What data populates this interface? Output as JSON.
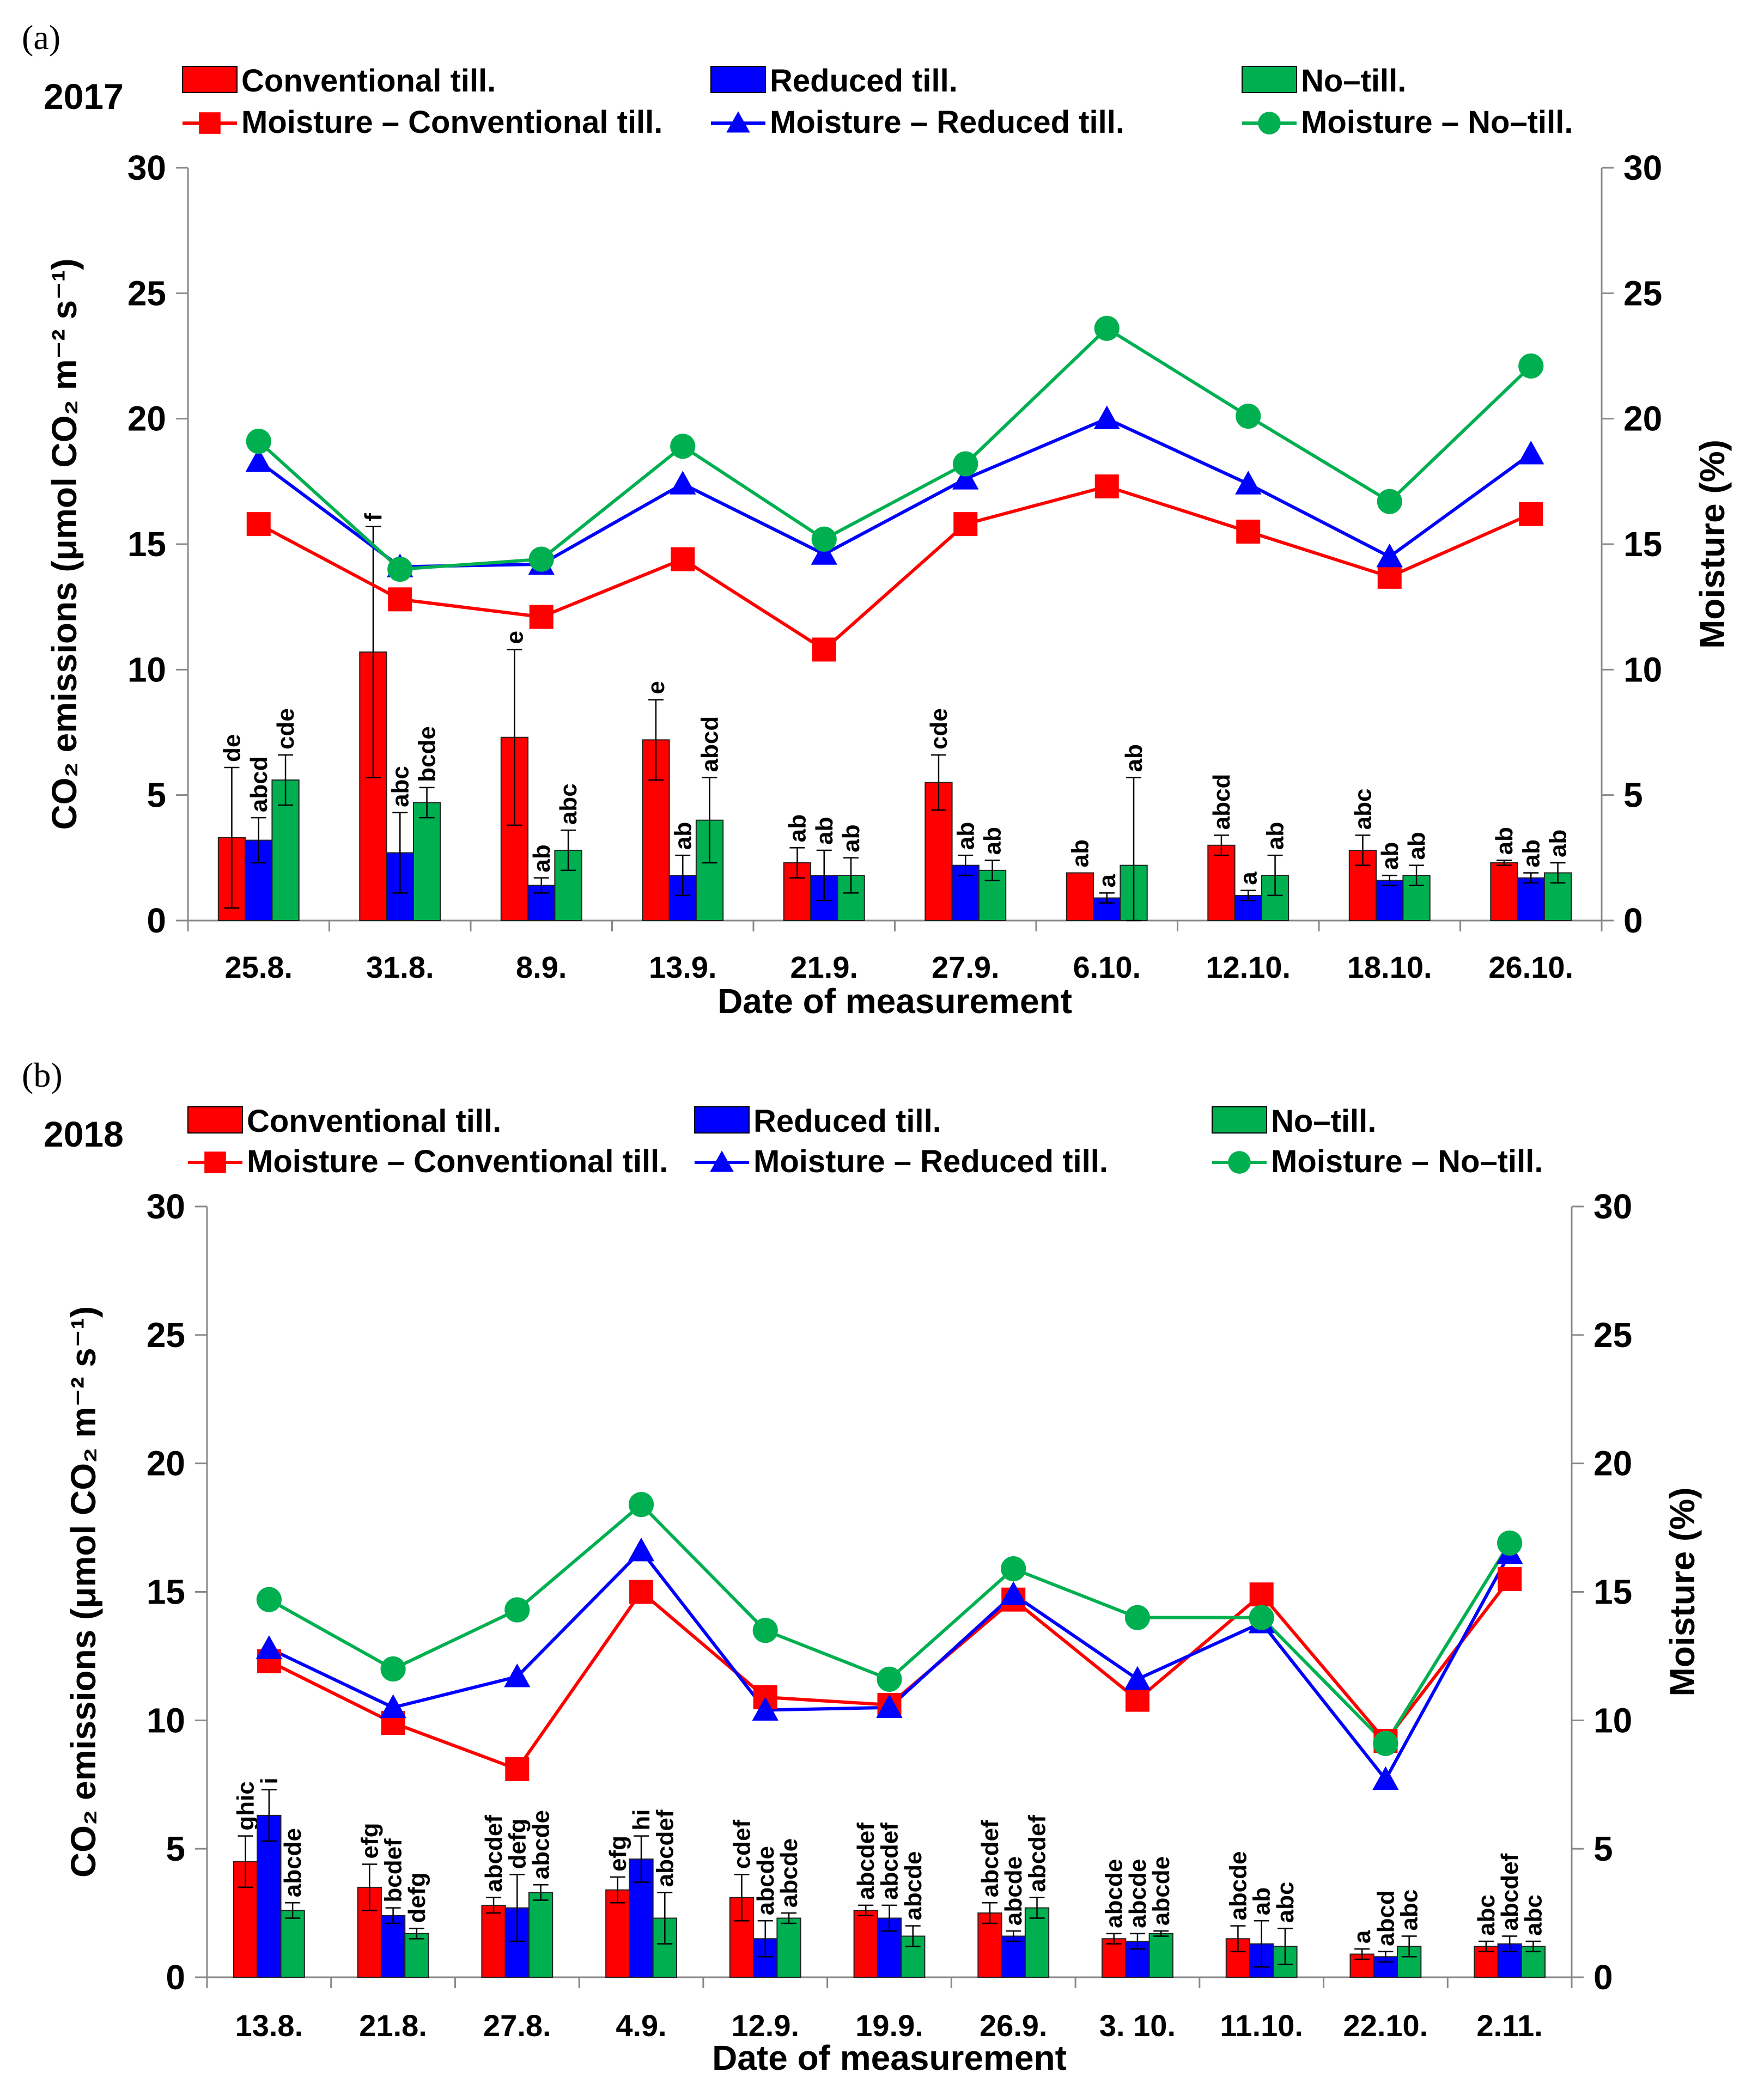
{
  "colors": {
    "conventional": "#ff0000",
    "reduced": "#0000ff",
    "no_till": "#00b050",
    "axis": "#888888",
    "text": "#000000"
  },
  "chart_data": [
    {
      "type": "bar+line",
      "panel_label": "(a)",
      "year": "2017",
      "xlabel": "Date of measurement",
      "ylabel_left": "CO₂ emissions (μmol CO₂ m⁻² s⁻¹)",
      "ylabel_right": "Moisture (%)",
      "ylim_left": [
        0,
        30
      ],
      "ylim_right": [
        0,
        30
      ],
      "yticks": [
        "0",
        "5",
        "10",
        "15",
        "20",
        "25",
        "30"
      ],
      "legend": {
        "bars": [
          "Conventional till.",
          "Reduced till.",
          "No–till."
        ],
        "lines": [
          "Moisture – Conventional till.",
          "Moisture – Reduced till.",
          "Moisture – No–till."
        ]
      },
      "categories": [
        "25.8.",
        "31.8.",
        "8.9.",
        "13.9.",
        "21.9.",
        "27.9.",
        "6.10.",
        "12.10.",
        "18.10.",
        "26.10."
      ],
      "bar_series": [
        {
          "name": "Conventional till.",
          "values": [
            3.3,
            10.7,
            7.3,
            7.2,
            2.3,
            5.5,
            1.9,
            3.0,
            2.8,
            2.3
          ],
          "errors": [
            2.8,
            5.0,
            3.5,
            1.6,
            0.6,
            1.1,
            0.0,
            0.4,
            0.6,
            0.1
          ],
          "letters": [
            "de",
            "f",
            "e",
            "e",
            "ab",
            "cde",
            "ab",
            "abcd",
            "abc",
            "ab"
          ]
        },
        {
          "name": "Reduced till.",
          "values": [
            3.2,
            2.7,
            1.4,
            1.8,
            1.8,
            2.2,
            0.9,
            1.0,
            1.6,
            1.7
          ],
          "errors": [
            0.9,
            1.6,
            0.3,
            0.8,
            1.0,
            0.4,
            0.2,
            0.2,
            0.2,
            0.2
          ],
          "letters": [
            "abcd",
            "abc",
            "ab",
            "ab",
            "ab",
            "ab",
            "a",
            "a",
            "ab",
            "ab"
          ]
        },
        {
          "name": "No–till.",
          "values": [
            5.6,
            4.7,
            2.8,
            4.0,
            1.8,
            2.0,
            2.2,
            1.8,
            1.8,
            1.9
          ],
          "errors": [
            1.0,
            0.6,
            0.8,
            1.7,
            0.7,
            0.4,
            3.5,
            0.8,
            0.4,
            0.4
          ],
          "letters": [
            "cde",
            "bcde",
            "abc",
            "abcd",
            "ab",
            "ab",
            "ab",
            "ab",
            "ab",
            "ab"
          ]
        }
      ],
      "moisture_series": [
        {
          "name": "Moisture – Conventional till.",
          "marker": "square",
          "values": [
            15.8,
            12.8,
            12.1,
            14.4,
            10.8,
            15.8,
            17.3,
            15.5,
            13.7,
            16.2
          ]
        },
        {
          "name": "Moisture – Reduced till.",
          "marker": "triangle",
          "values": [
            18.3,
            14.1,
            14.2,
            17.4,
            14.6,
            17.6,
            20.0,
            17.4,
            14.5,
            18.6
          ]
        },
        {
          "name": "Moisture – No–till.",
          "marker": "circle",
          "values": [
            19.1,
            14.0,
            14.4,
            18.9,
            15.2,
            18.2,
            23.6,
            20.1,
            16.7,
            22.1
          ]
        }
      ]
    },
    {
      "type": "bar+line",
      "panel_label": "(b)",
      "year": "2018",
      "xlabel": "Date of measurement",
      "ylabel_left": "CO₂ emissions (μmol CO₂ m⁻² s⁻¹)",
      "ylabel_right": "Moisture (%)",
      "ylim_left": [
        0,
        30
      ],
      "ylim_right": [
        0,
        30
      ],
      "yticks": [
        "0",
        "5",
        "10",
        "15",
        "20",
        "25",
        "30"
      ],
      "legend": {
        "bars": [
          "Conventional till.",
          "Reduced till.",
          "No–till."
        ],
        "lines": [
          "Moisture – Conventional till.",
          "Moisture – Reduced till.",
          "Moisture – No–till."
        ]
      },
      "categories": [
        "13.8.",
        "21.8.",
        "27.8.",
        "4.9.",
        "12.9.",
        "19.9.",
        "26.9.",
        "3. 10.",
        "11.10.",
        "22.10.",
        "2.11."
      ],
      "bar_series": [
        {
          "name": "Conventional till.",
          "values": [
            4.5,
            3.5,
            2.8,
            3.4,
            3.1,
            2.6,
            2.5,
            1.5,
            1.5,
            0.9,
            1.2
          ],
          "errors": [
            1.0,
            0.9,
            0.3,
            0.5,
            0.9,
            0.2,
            0.4,
            0.2,
            0.5,
            0.2,
            0.2
          ],
          "letters": [
            "ghic",
            "efg",
            "abcdef",
            "efg",
            "cdef",
            "abcdef",
            "abcdef",
            "abcde",
            "abcde",
            "a",
            "abc"
          ]
        },
        {
          "name": "Reduced till.",
          "values": [
            6.3,
            2.4,
            2.7,
            4.6,
            1.5,
            2.3,
            1.6,
            1.4,
            1.3,
            0.8,
            1.3
          ],
          "errors": [
            1.0,
            0.3,
            1.3,
            0.9,
            0.7,
            0.5,
            0.2,
            0.3,
            0.9,
            0.2,
            0.3
          ],
          "letters": [
            "i",
            "bcdef",
            "defg",
            "hi",
            "abcde",
            "abcdef",
            "abcde",
            "abcde",
            "ab",
            "abcd",
            "abcdef"
          ]
        },
        {
          "name": "No–till.",
          "values": [
            2.6,
            1.7,
            3.3,
            2.3,
            2.3,
            1.6,
            2.7,
            1.7,
            1.2,
            1.2,
            1.2
          ],
          "errors": [
            0.3,
            0.2,
            0.3,
            1.0,
            0.2,
            0.4,
            0.4,
            0.1,
            0.7,
            0.4,
            0.2
          ],
          "letters": [
            "abcde",
            "defg",
            "abcde",
            "abcdef",
            "abcde",
            "abcde",
            "abcdef",
            "abcde",
            "abc",
            "abc",
            "abc"
          ]
        }
      ],
      "moisture_series": [
        {
          "name": "Moisture – Conventional till.",
          "marker": "square",
          "values": [
            12.3,
            9.9,
            8.1,
            15.0,
            10.9,
            10.6,
            14.7,
            10.8,
            14.9,
            9.2,
            15.5
          ]
        },
        {
          "name": "Moisture – Reduced till.",
          "marker": "triangle",
          "values": [
            12.8,
            10.5,
            11.7,
            16.6,
            10.4,
            10.5,
            14.9,
            11.6,
            13.8,
            7.7,
            16.5
          ]
        },
        {
          "name": "Moisture – No–till.",
          "marker": "circle",
          "values": [
            14.7,
            12.0,
            14.3,
            18.4,
            13.5,
            11.6,
            15.9,
            14.0,
            14.0,
            9.1,
            16.9
          ]
        }
      ]
    }
  ]
}
